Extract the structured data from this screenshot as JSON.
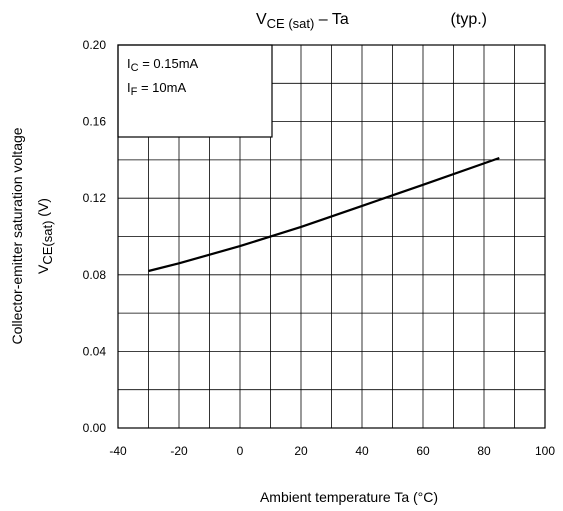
{
  "chart_data": {
    "type": "line",
    "title": {
      "main": "V",
      "main_sub": "CE (sat)",
      "dash": "–",
      "var": "Ta",
      "note": "(typ.)"
    },
    "xlabel": {
      "text": "Ambient temperature",
      "symbol": "Ta",
      "unit": "(°C)"
    },
    "ylabel": {
      "line1": "Collector-emitter saturation voltage",
      "symbol": "V",
      "symbol_sub": "CE(sat)",
      "unit": "(V)"
    },
    "xlim": [
      -40,
      100
    ],
    "ylim": [
      0,
      0.2
    ],
    "x_ticks": [
      -40,
      -20,
      0,
      20,
      40,
      60,
      80,
      100
    ],
    "x_tick_labels": [
      "-40",
      "-20",
      "0",
      "20",
      "40",
      "60",
      "80",
      "100"
    ],
    "y_ticks": [
      0,
      0.04,
      0.08,
      0.12,
      0.16,
      0.2
    ],
    "y_tick_labels": [
      "0.00",
      "0.04",
      "0.08",
      "0.12",
      "0.16",
      "0.20"
    ],
    "grid": true,
    "legend": {
      "placement": "top-left",
      "lines": [
        {
          "pre": "I",
          "sub": "C",
          "post": " = 0.15mA"
        },
        {
          "pre": "I",
          "sub": "F",
          "post": " = 10mA"
        }
      ]
    },
    "series": [
      {
        "x": [
          -30,
          -20,
          0,
          20,
          40,
          60,
          85
        ],
        "y": [
          0.082,
          0.086,
          0.095,
          0.105,
          0.116,
          0.127,
          0.141
        ]
      }
    ]
  }
}
